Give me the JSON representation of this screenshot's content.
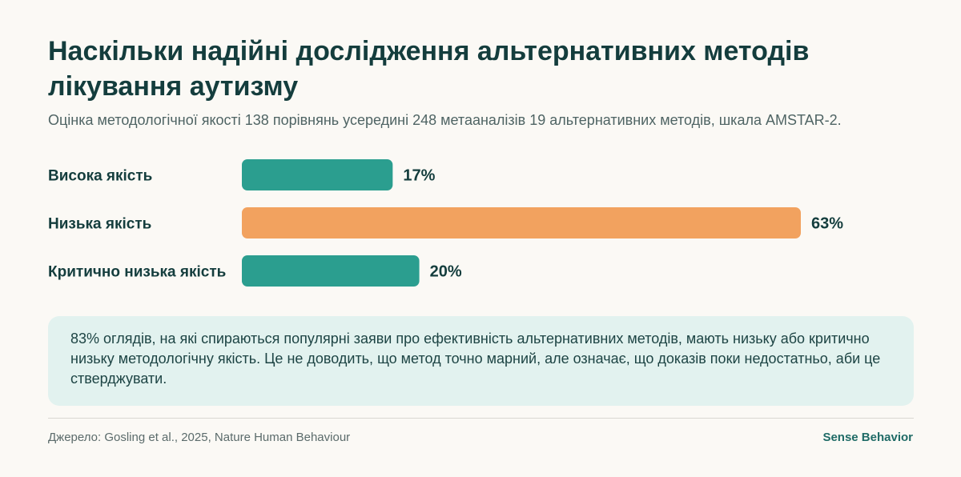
{
  "header": {
    "title": "Наскільки надійні дослідження альтернативних методів лікування аутизму",
    "subtitle": "Оцінка методологічної якості 138 порівнянь усередині 248 метааналізів 19 альтернативних методів, шкала AMSTAR-2."
  },
  "chart_data": {
    "type": "bar",
    "orientation": "horizontal",
    "categories": [
      "Висока якість",
      "Низька якість",
      "Критично низька якість"
    ],
    "values": [
      17,
      63,
      20
    ],
    "value_labels": [
      "17%",
      "63%",
      "20%"
    ],
    "unit": "%",
    "xlim": [
      0,
      63
    ],
    "grid": false,
    "colors": [
      "#2b9e8f",
      "#f2a25f",
      "#2b9e8f"
    ]
  },
  "note": {
    "text": "83% оглядів, на які спираються популярні заяви про ефективність альтернативних методів, мають низьку або критично низьку методологічну якість. Це не доводить, що метод точно марний, але означає, що доказів поки недостатньо, аби це стверджувати."
  },
  "footer": {
    "source": "Джерело: Gosling et al., 2025, Nature Human Behaviour",
    "brand": "Sense Behavior"
  },
  "colors": {
    "background": "#fbf9f5",
    "title": "#143d3d",
    "note_background": "#e2f2ef",
    "brand": "#1f6b66"
  }
}
